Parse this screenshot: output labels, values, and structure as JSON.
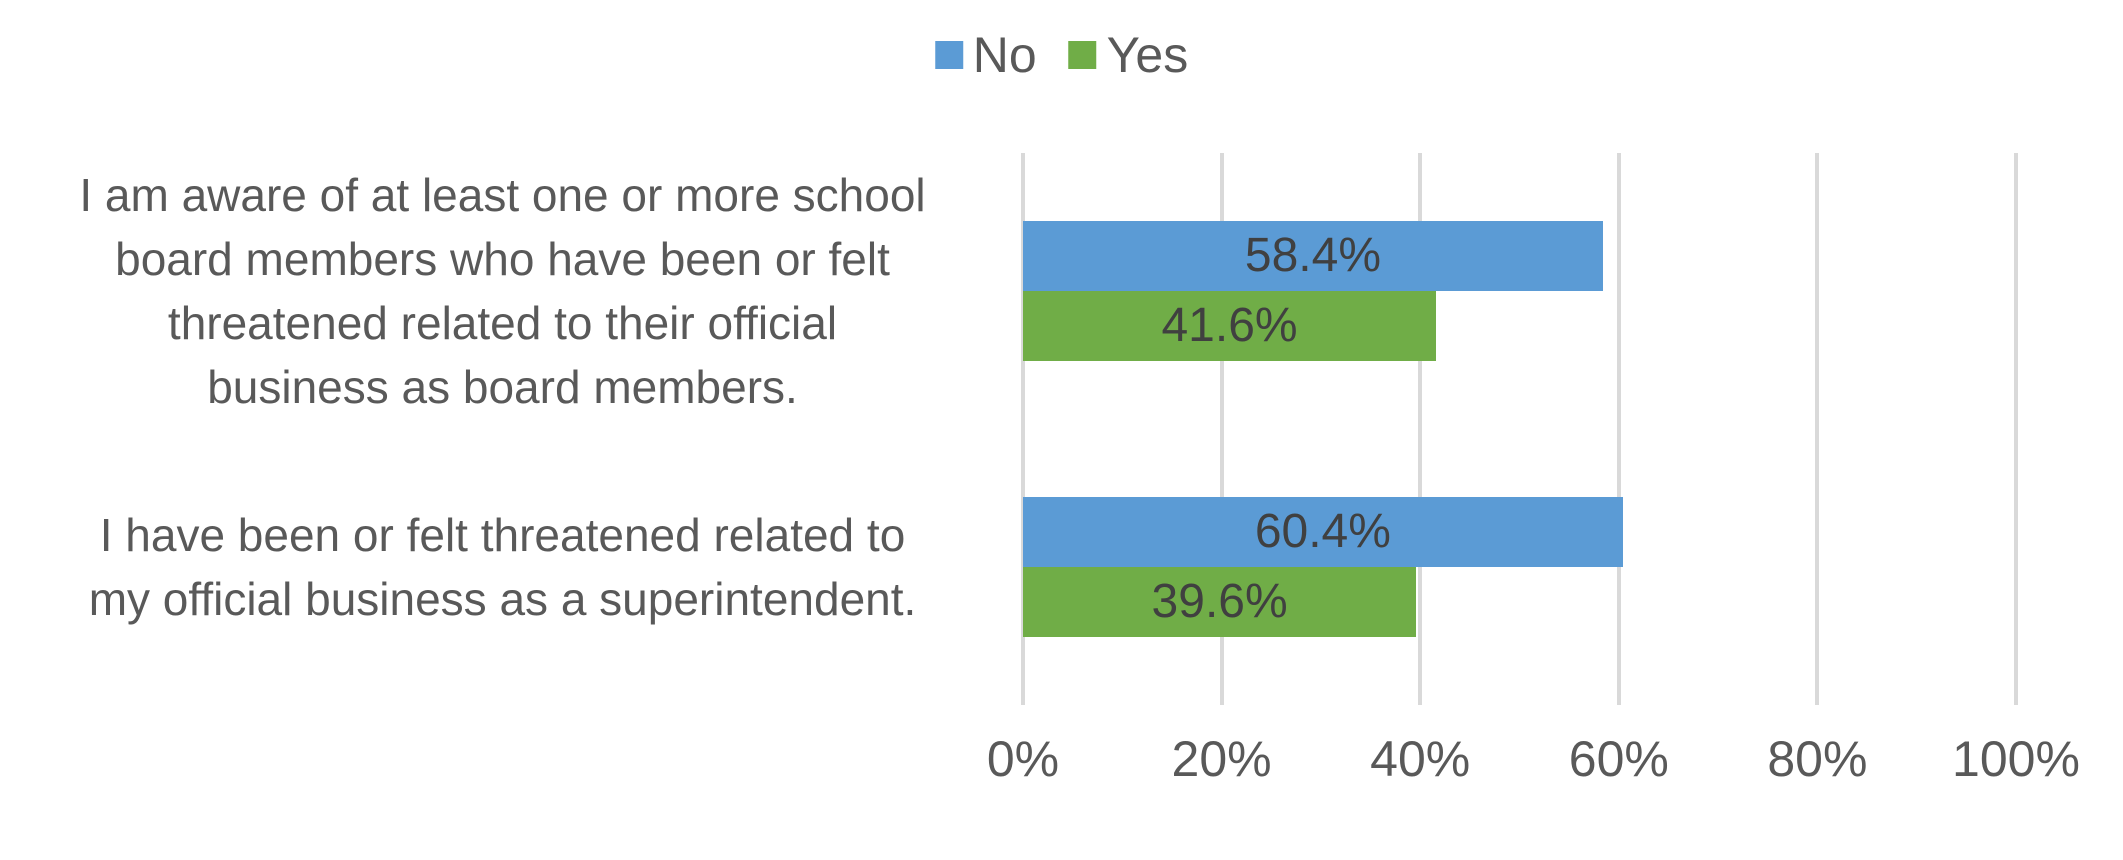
{
  "figure": {
    "background": "#FFFFFF"
  },
  "legend": {
    "position": "top-center",
    "items": [
      {
        "label": "No",
        "color": "#5B9BD5"
      },
      {
        "label": "Yes",
        "color": "#70AD47"
      }
    ]
  },
  "chart_data": {
    "type": "bar",
    "orientation": "horizontal",
    "title": "",
    "categories": [
      "I am aware of at least one or more school board members who have been or felt threatened related to their official business as board members.",
      "I have been or felt threatened related to my official business as a superintendent."
    ],
    "category_label_lines": [
      [
        "I am aware of at least one or more school",
        "board members who have been or felt",
        "threatened related to their official",
        "business as board members."
      ],
      [
        "I have been or felt threatened related to",
        "my official business as a superintendent."
      ]
    ],
    "series": [
      {
        "name": "No",
        "color": "#5B9BD5",
        "values": [
          58.4,
          60.4
        ],
        "data_labels": [
          "58.4%",
          "60.4%"
        ]
      },
      {
        "name": "Yes",
        "color": "#70AD47",
        "values": [
          41.6,
          39.6
        ],
        "data_labels": [
          "41.6%",
          "39.6%"
        ]
      }
    ],
    "x_axis": {
      "min": 0,
      "max": 100,
      "tick_labels": [
        "0%",
        "20%",
        "40%",
        "60%",
        "80%",
        "100%"
      ],
      "gridlines": true,
      "gridline_color": "#D9D9D9"
    },
    "legend_position": "top",
    "text_colors": {
      "category_label": "#595959",
      "data_label": "#404040",
      "axis_tick": "#595959",
      "legend_label": "#595959"
    }
  }
}
